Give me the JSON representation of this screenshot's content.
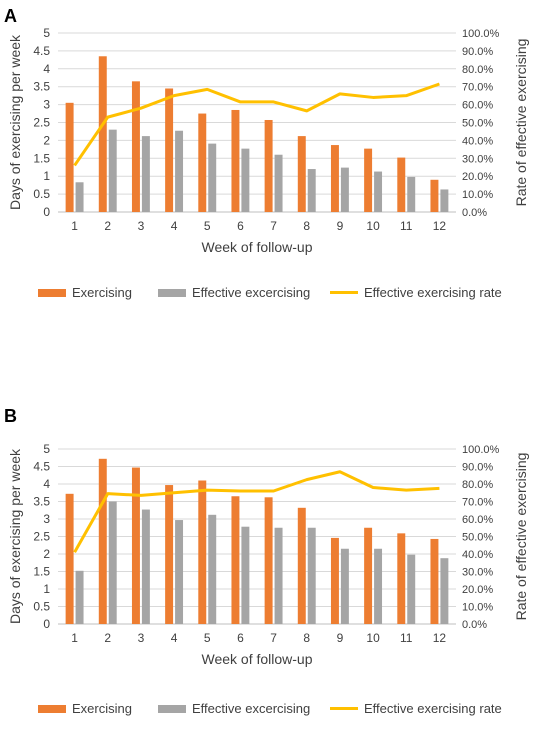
{
  "colors": {
    "exercising": "#ED7D31",
    "effective": "#A5A5A5",
    "rate": "#FFC000",
    "grid": "#D9D9D9"
  },
  "legend": {
    "exercising": "Exercising",
    "effective": "Effective excercising",
    "rate": "Effective exercising rate"
  },
  "chart_data": [
    {
      "panel_label": "A",
      "type": "bar",
      "xlabel": "Week of follow-up",
      "ylabel": "Days of exercising per week",
      "y2label": "Rate of effective exercising",
      "ylim": [
        0,
        5
      ],
      "y2lim": [
        0,
        100
      ],
      "yticks": [
        "0",
        "0.5",
        "1",
        "1.5",
        "2",
        "2.5",
        "3",
        "3.5",
        "4",
        "4.5",
        "5"
      ],
      "y2ticks": [
        "0.0%",
        "10.0%",
        "20.0%",
        "30.0%",
        "40.0%",
        "50.0%",
        "60.0%",
        "70.0%",
        "80.0%",
        "90.0%",
        "100.0%"
      ],
      "categories": [
        "1",
        "2",
        "3",
        "4",
        "5",
        "6",
        "7",
        "8",
        "9",
        "10",
        "11",
        "12"
      ],
      "series": [
        {
          "name": "Exercising",
          "type": "bar",
          "axis": "left",
          "values": [
            3.05,
            4.35,
            3.65,
            3.45,
            2.75,
            2.85,
            2.57,
            2.12,
            1.87,
            1.77,
            1.52,
            0.9
          ]
        },
        {
          "name": "Effective excercising",
          "type": "bar",
          "axis": "left",
          "values": [
            0.83,
            2.3,
            2.12,
            2.27,
            1.91,
            1.77,
            1.6,
            1.2,
            1.24,
            1.13,
            0.98,
            0.63
          ]
        },
        {
          "name": "Effective exercising rate",
          "type": "line",
          "axis": "right",
          "values": [
            26,
            53,
            58,
            65,
            68.5,
            61.5,
            61.5,
            56.5,
            66,
            64,
            65,
            71.5
          ]
        }
      ],
      "legend_position": "bottom"
    },
    {
      "panel_label": "B",
      "type": "bar",
      "xlabel": "Week of follow-up",
      "ylabel": "Days of exercising per week",
      "y2label": "Rate of effective  exercising",
      "ylim": [
        0,
        5
      ],
      "y2lim": [
        0,
        100
      ],
      "yticks": [
        "0",
        "0.5",
        "1",
        "1.5",
        "2",
        "2.5",
        "3",
        "3.5",
        "4",
        "4.5",
        "5"
      ],
      "y2ticks": [
        "0.0%",
        "10.0%",
        "20.0%",
        "30.0%",
        "40.0%",
        "50.0%",
        "60.0%",
        "70.0%",
        "80.0%",
        "90.0%",
        "100.0%"
      ],
      "categories": [
        "1",
        "2",
        "3",
        "4",
        "5",
        "6",
        "7",
        "8",
        "9",
        "10",
        "11",
        "12"
      ],
      "series": [
        {
          "name": "Exercising",
          "type": "bar",
          "axis": "left",
          "values": [
            3.72,
            4.72,
            4.47,
            3.97,
            4.1,
            3.65,
            3.62,
            3.32,
            2.46,
            2.75,
            2.59,
            2.43
          ]
        },
        {
          "name": "Effective excercising",
          "type": "bar",
          "axis": "left",
          "values": [
            1.52,
            3.5,
            3.27,
            2.97,
            3.12,
            2.78,
            2.75,
            2.75,
            2.15,
            2.15,
            1.98,
            1.88
          ]
        },
        {
          "name": "Effective exercising rate",
          "type": "line",
          "axis": "right",
          "values": [
            41,
            74.5,
            73.5,
            75,
            76.5,
            76,
            76,
            82.5,
            87,
            78,
            76.5,
            77.5
          ]
        }
      ],
      "legend_position": "bottom"
    }
  ]
}
